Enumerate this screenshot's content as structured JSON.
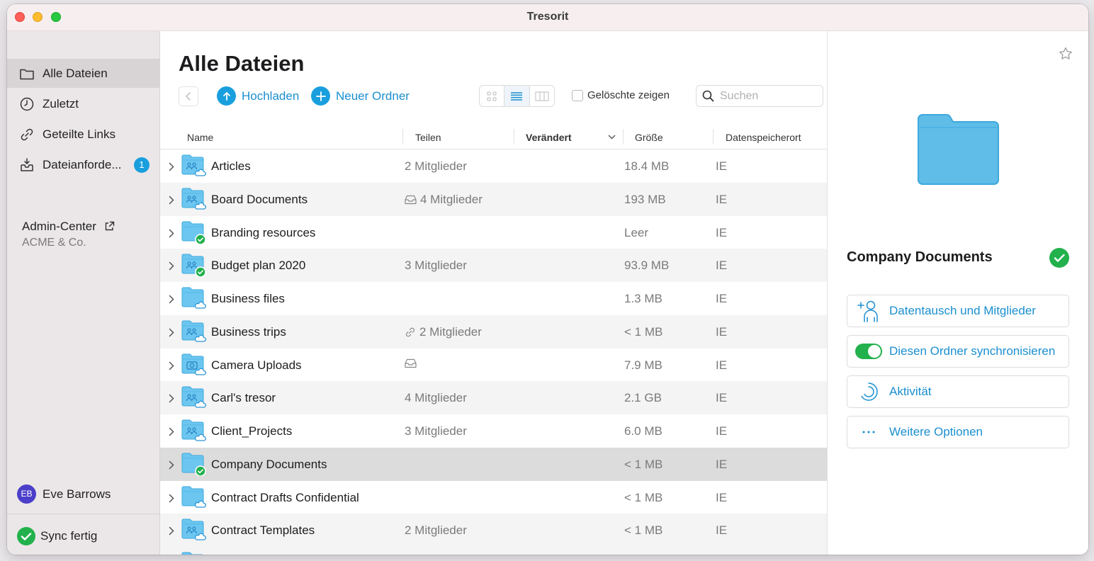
{
  "window": {
    "title": "Tresorit"
  },
  "sidebar": {
    "items": [
      {
        "label": "Alle Dateien",
        "icon": "folder-icon",
        "active": true
      },
      {
        "label": "Zuletzt",
        "icon": "clock-icon"
      },
      {
        "label": "Geteilte Links",
        "icon": "link-icon"
      },
      {
        "label": "Dateianforde...",
        "icon": "inbox-icon",
        "badge": "1"
      }
    ],
    "admin": {
      "label": "Admin-Center",
      "org": "ACME & Co."
    },
    "user": {
      "initials": "EB",
      "name": "Eve Barrows"
    },
    "sync_status": "Sync fertig"
  },
  "main": {
    "title": "Alle Dateien",
    "toolbar": {
      "upload_label": "Hochladen",
      "new_folder_label": "Neuer Ordner",
      "show_deleted_label": "Gelöschte zeigen",
      "search_placeholder": "Suchen"
    },
    "columns": {
      "name": "Name",
      "share": "Teilen",
      "modified": "Verändert",
      "size": "Größe",
      "location": "Datenspeicherort"
    },
    "rows": [
      {
        "name": "Articles",
        "share": "2 Mitglieder",
        "share_icon": "",
        "size": "18.4 MB",
        "location": "IE",
        "folder_type": "shared",
        "synced": false
      },
      {
        "name": "Board Documents",
        "share": "4 Mitglieder",
        "share_icon": "inbox-icon",
        "size": "193 MB",
        "location": "IE",
        "folder_type": "shared",
        "synced": false
      },
      {
        "name": "Branding resources",
        "share": "",
        "share_icon": "",
        "size": "Leer",
        "location": "IE",
        "folder_type": "plain",
        "synced": true
      },
      {
        "name": "Budget plan 2020",
        "share": "3 Mitglieder",
        "share_icon": "",
        "size": "93.9 MB",
        "location": "IE",
        "folder_type": "shared",
        "synced": true
      },
      {
        "name": "Business files",
        "share": "",
        "share_icon": "",
        "size": "1.3 MB",
        "location": "IE",
        "folder_type": "plain",
        "synced": false
      },
      {
        "name": "Business trips",
        "share": "2 Mitglieder",
        "share_icon": "link-icon",
        "size": "< 1 MB",
        "location": "IE",
        "folder_type": "shared",
        "synced": false
      },
      {
        "name": "Camera Uploads",
        "share": "",
        "share_icon": "inbox-icon",
        "size": "7.9 MB",
        "location": "IE",
        "folder_type": "camera",
        "synced": false
      },
      {
        "name": "Carl's tresor",
        "share": "4 Mitglieder",
        "share_icon": "",
        "size": "2.1 GB",
        "location": "IE",
        "folder_type": "shared",
        "synced": false
      },
      {
        "name": "Client_Projects",
        "share": "3 Mitglieder",
        "share_icon": "",
        "size": "6.0 MB",
        "location": "IE",
        "folder_type": "shared",
        "synced": false
      },
      {
        "name": "Company Documents",
        "share": "",
        "share_icon": "",
        "size": "< 1 MB",
        "location": "IE",
        "folder_type": "plain",
        "synced": true,
        "selected": true
      },
      {
        "name": "Contract Drafts Confidential",
        "share": "",
        "share_icon": "",
        "size": "< 1 MB",
        "location": "IE",
        "folder_type": "plain",
        "synced": false
      },
      {
        "name": "Contract Templates",
        "share": "2 Mitglieder",
        "share_icon": "",
        "size": "< 1 MB",
        "location": "IE",
        "folder_type": "shared",
        "synced": false
      }
    ]
  },
  "detail": {
    "title": "Company Documents",
    "actions": [
      {
        "label": "Datentausch und Mitglieder",
        "icon": "add-member-icon"
      },
      {
        "label": "Diesen Ordner synchronisieren",
        "icon": "toggle",
        "on": true
      },
      {
        "label": "Aktivität",
        "icon": "activity-icon"
      },
      {
        "label": "Weitere Optionen",
        "icon": "more-icon"
      }
    ]
  },
  "colors": {
    "accent": "#1a9fde",
    "success": "#22b14c",
    "folder": "#6cc6f0"
  }
}
